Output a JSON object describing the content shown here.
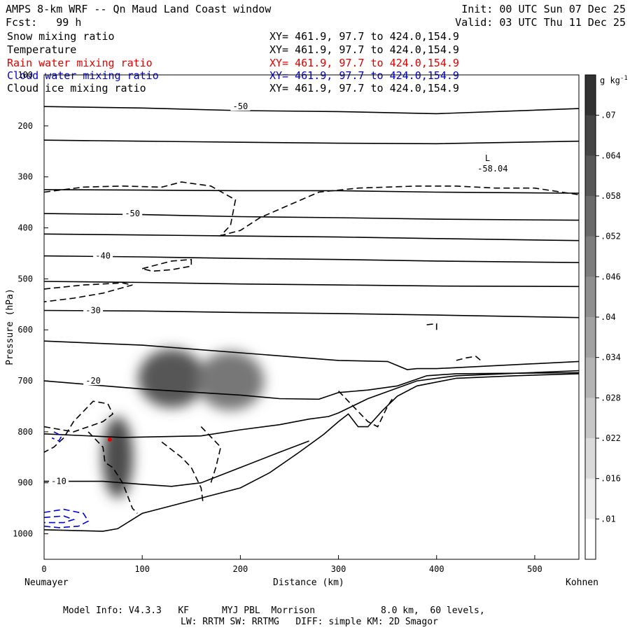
{
  "header": {
    "title": "AMPS 8-km WRF -- Qn Maud Land Coast window",
    "forecast": "Fcst:   99 h",
    "init": "Init: 00 UTC Sun 07 Dec 25",
    "valid": "Valid: 03 UTC Thu 11 Dec 25"
  },
  "legend": [
    {
      "name": "Snow mixing ratio",
      "xy": "XY= 461.9, 97.7 to 424.0,154.9",
      "color": "#000000"
    },
    {
      "name": "Temperature",
      "xy": "XY= 461.9, 97.7 to 424.0,154.9",
      "color": "#000000"
    },
    {
      "name": "Rain water mixing ratio",
      "xy": "XY= 461.9, 97.7 to 424.0,154.9",
      "color": "#e00000"
    },
    {
      "name": "Cloud water mixing ratio",
      "xy": "XY= 461.9, 97.7 to 424.0,154.9",
      "color": "#0000d0"
    },
    {
      "name": "Cloud ice mixing ratio",
      "xy": "XY= 461.9, 97.7 to 424.0,154.9",
      "color": "#000000"
    }
  ],
  "footer": {
    "line1": "Model Info: V4.3.3   KF      MYJ PBL  Morrison            8.0 km,  60 levels,",
    "line2": "LW: RRTM SW: RRTMG   DIFF: simple KM: 2D Smagor"
  },
  "chart_data": {
    "type": "cross-section",
    "xlabel": "Distance (km)",
    "ylabel": "Pressure (hPa)",
    "x_start_label": "Neumayer",
    "x_end_label": "Kohnen",
    "xlim": [
      0,
      545
    ],
    "ylim": [
      1050,
      100
    ],
    "x_ticks": [
      0,
      100,
      200,
      300,
      400,
      500
    ],
    "y_ticks": [
      100,
      200,
      300,
      400,
      500,
      600,
      700,
      800,
      900,
      1000
    ],
    "colorbar": {
      "unit": "g kg",
      "unit_exp": "-1",
      "ticks": [
        ".07",
        ".064",
        ".058",
        ".052",
        ".046",
        ".04",
        ".034",
        ".028",
        ".022",
        ".016",
        ".01"
      ],
      "values": [
        0.07,
        0.064,
        0.058,
        0.052,
        0.046,
        0.04,
        0.034,
        0.028,
        0.022,
        0.016,
        0.01
      ]
    },
    "temperature_contours": [
      {
        "label": "-50",
        "points": [
          [
            0,
            162
          ],
          [
            100,
            165
          ],
          [
            200,
            170
          ],
          [
            300,
            172
          ],
          [
            400,
            176
          ],
          [
            545,
            166
          ]
        ]
      },
      {
        "label": "",
        "points": [
          [
            0,
            228
          ],
          [
            100,
            230
          ],
          [
            200,
            232
          ],
          [
            300,
            234
          ],
          [
            400,
            235
          ],
          [
            545,
            230
          ]
        ]
      },
      {
        "label": "",
        "points": [
          [
            0,
            325
          ],
          [
            100,
            326
          ],
          [
            200,
            327
          ],
          [
            300,
            327
          ],
          [
            400,
            330
          ],
          [
            545,
            332
          ]
        ]
      },
      {
        "label": "-50",
        "points": [
          [
            0,
            372
          ],
          [
            100,
            374
          ],
          [
            200,
            378
          ],
          [
            300,
            380
          ],
          [
            400,
            383
          ],
          [
            545,
            385
          ]
        ]
      },
      {
        "label": "",
        "points": [
          [
            0,
            412
          ],
          [
            100,
            414
          ],
          [
            200,
            416
          ],
          [
            300,
            418
          ],
          [
            400,
            421
          ],
          [
            545,
            425
          ]
        ]
      },
      {
        "label": "-40",
        "points": [
          [
            0,
            455
          ],
          [
            100,
            457
          ],
          [
            200,
            460
          ],
          [
            300,
            462
          ],
          [
            400,
            465
          ],
          [
            545,
            468
          ]
        ]
      },
      {
        "label": "",
        "points": [
          [
            0,
            505
          ],
          [
            100,
            507
          ],
          [
            200,
            510
          ],
          [
            300,
            512
          ],
          [
            400,
            514
          ],
          [
            545,
            515
          ]
        ]
      },
      {
        "label": "-30",
        "points": [
          [
            0,
            562
          ],
          [
            100,
            563
          ],
          [
            200,
            566
          ],
          [
            300,
            568
          ],
          [
            400,
            571
          ],
          [
            545,
            576
          ]
        ]
      },
      {
        "label": "",
        "points": [
          [
            0,
            622
          ],
          [
            100,
            630
          ],
          [
            200,
            645
          ],
          [
            300,
            660
          ],
          [
            350,
            662
          ],
          [
            370,
            678
          ],
          [
            380,
            676
          ],
          [
            400,
            676
          ],
          [
            545,
            662
          ]
        ]
      },
      {
        "label": "-20",
        "points": [
          [
            0,
            700
          ],
          [
            50,
            708
          ],
          [
            100,
            716
          ],
          [
            150,
            722
          ],
          [
            200,
            728
          ],
          [
            240,
            735
          ],
          [
            280,
            736
          ],
          [
            300,
            723
          ],
          [
            330,
            718
          ],
          [
            360,
            710
          ],
          [
            390,
            690
          ],
          [
            420,
            686
          ],
          [
            545,
            684
          ]
        ]
      },
      {
        "label": "",
        "points": [
          [
            0,
            804
          ],
          [
            80,
            811
          ],
          [
            160,
            808
          ],
          [
            200,
            796
          ],
          [
            240,
            786
          ],
          [
            270,
            775
          ],
          [
            290,
            770
          ],
          [
            300,
            763
          ],
          [
            330,
            735
          ],
          [
            380,
            700
          ],
          [
            420,
            690
          ],
          [
            545,
            680
          ]
        ]
      },
      {
        "label": "-10",
        "points": [
          [
            0,
            897
          ],
          [
            60,
            897
          ],
          [
            100,
            903
          ],
          [
            130,
            907
          ],
          [
            160,
            900
          ],
          [
            200,
            870
          ],
          [
            240,
            840
          ],
          [
            270,
            818
          ]
        ]
      }
    ],
    "terrain": [
      [
        0,
        992
      ],
      [
        60,
        995
      ],
      [
        75,
        990
      ],
      [
        100,
        960
      ],
      [
        130,
        945
      ],
      [
        170,
        925
      ],
      [
        200,
        910
      ],
      [
        230,
        880
      ],
      [
        260,
        840
      ],
      [
        285,
        805
      ],
      [
        300,
        780
      ],
      [
        310,
        765
      ],
      [
        320,
        790
      ],
      [
        330,
        790
      ],
      [
        345,
        758
      ],
      [
        360,
        730
      ],
      [
        380,
        710
      ],
      [
        420,
        695
      ],
      [
        480,
        690
      ],
      [
        545,
        686
      ]
    ],
    "pressure_min_label": {
      "symbol": "L",
      "value": "-58.04",
      "x": 455,
      "p": 285
    },
    "snow_shading": [
      {
        "x": 75,
        "p": 850,
        "value": 0.066
      },
      {
        "x": 130,
        "p": 695,
        "value": 0.062
      },
      {
        "x": 190,
        "p": 700,
        "value": 0.05
      }
    ],
    "rain_water": {
      "x": 67,
      "p": 815,
      "value": 0.01
    }
  }
}
